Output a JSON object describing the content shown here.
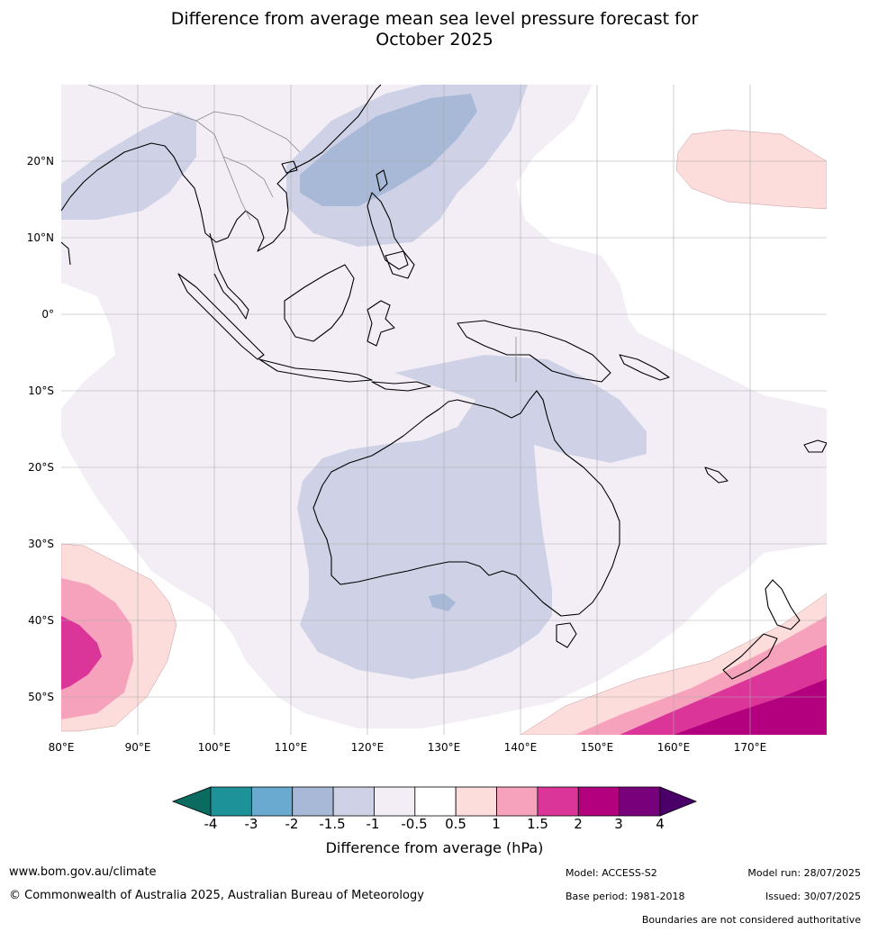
{
  "title_line1": "Difference from average mean sea level pressure forecast for",
  "title_line2": "October 2025",
  "map": {
    "lat_labels": [
      {
        "text": "20°N",
        "lat": 20
      },
      {
        "text": "10°N",
        "lat": 10
      },
      {
        "text": "0°",
        "lat": 0
      },
      {
        "text": "10°S",
        "lat": -10
      },
      {
        "text": "20°S",
        "lat": -20
      },
      {
        "text": "30°S",
        "lat": -30
      },
      {
        "text": "40°S",
        "lat": -40
      },
      {
        "text": "50°S",
        "lat": -50
      }
    ],
    "lon_labels": [
      {
        "text": "80°E",
        "lon": 80
      },
      {
        "text": "90°E",
        "lon": 90
      },
      {
        "text": "100°E",
        "lon": 100
      },
      {
        "text": "110°E",
        "lon": 110
      },
      {
        "text": "120°E",
        "lon": 120
      },
      {
        "text": "130°E",
        "lon": 130
      },
      {
        "text": "140°E",
        "lon": 140
      },
      {
        "text": "150°E",
        "lon": 150
      },
      {
        "text": "160°E",
        "lon": 160
      },
      {
        "text": "170°E",
        "lon": 170
      }
    ],
    "extent": {
      "lon_min": 80,
      "lon_max": 180,
      "lat_min": -55,
      "lat_max": 30
    }
  },
  "colorbar": {
    "colors": [
      "#0b6b60",
      "#1e9299",
      "#6aaad0",
      "#a7b9d6",
      "#cfd2e6",
      "#f3eef6",
      "#ffffff",
      "#fddcdc",
      "#f7a2bc",
      "#dc359a",
      "#b2007f",
      "#78007b",
      "#4a0068"
    ],
    "ticks": [
      "-4",
      "-3",
      "-2",
      "-1.5",
      "-1",
      "-0.5",
      "0.5",
      "1",
      "1.5",
      "2",
      "3",
      "4"
    ],
    "label": "Difference from average (hPa)"
  },
  "footer": {
    "website": "www.bom.gov.au/climate",
    "copyright": "© Commonwealth of Australia 2025, Australian Bureau of Meteorology",
    "model": "Model: ACCESS-S2",
    "base_period": "Base period: 1981-2018",
    "model_run": "Model run: 28/07/2025",
    "issued": "Issued: 30/07/2025",
    "disclaimer": "Boundaries are not considered authoritative"
  }
}
